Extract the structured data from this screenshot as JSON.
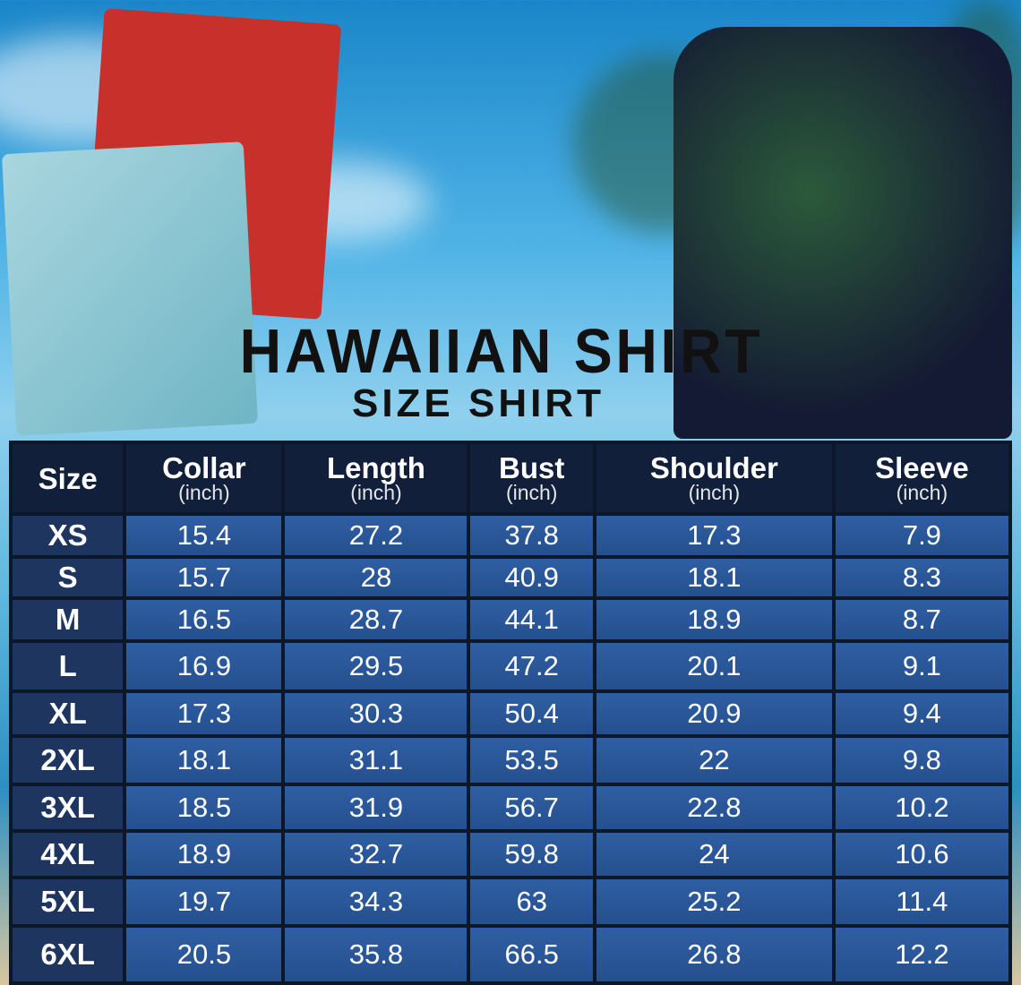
{
  "title": "HAWAIIAN SHIRT",
  "subtitle": "SIZE SHIRT",
  "table": {
    "headers": [
      {
        "label": "Size",
        "unit": ""
      },
      {
        "label": "Collar",
        "unit": "(inch)"
      },
      {
        "label": "Length",
        "unit": "(inch)"
      },
      {
        "label": "Bust",
        "unit": "(inch)"
      },
      {
        "label": "Shoulder",
        "unit": "(inch)"
      },
      {
        "label": "Sleeve",
        "unit": "(inch)"
      }
    ],
    "rows": [
      [
        "XS",
        "15.4",
        "27.2",
        "37.8",
        "17.3",
        "7.9"
      ],
      [
        "S",
        "15.7",
        "28",
        "40.9",
        "18.1",
        "8.3"
      ],
      [
        "M",
        "16.5",
        "28.7",
        "44.1",
        "18.9",
        "8.7"
      ],
      [
        "L",
        "16.9",
        "29.5",
        "47.2",
        "20.1",
        "9.1"
      ],
      [
        "XL",
        "17.3",
        "30.3",
        "50.4",
        "20.9",
        "9.4"
      ],
      [
        "2XL",
        "18.1",
        "31.1",
        "53.5",
        "22",
        "9.8"
      ],
      [
        "3XL",
        "18.5",
        "31.9",
        "56.7",
        "22.8",
        "10.2"
      ],
      [
        "4XL",
        "18.9",
        "32.7",
        "59.8",
        "24",
        "10.6"
      ],
      [
        "5XL",
        "19.7",
        "34.3",
        "63",
        "25.2",
        "11.4"
      ],
      [
        "6XL",
        "20.5",
        "35.8",
        "66.5",
        "26.8",
        "12.2"
      ]
    ]
  },
  "colors": {
    "header_bg": "#111f3a",
    "cell_bg": "#2f5ea3",
    "size_bg": "#1e3560"
  }
}
